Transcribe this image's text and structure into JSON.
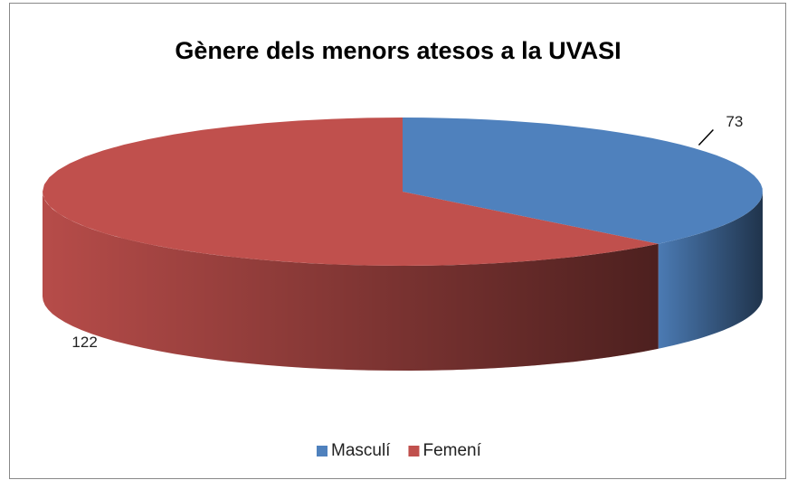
{
  "chart_data": {
    "type": "pie3d",
    "title": "Gènere dels menors atesos a la UVASI",
    "categories": [
      "Masculí",
      "Femení"
    ],
    "values": [
      73,
      122
    ],
    "colors": [
      "#4f81bd",
      "#c0504d"
    ],
    "legend": "bottom"
  }
}
